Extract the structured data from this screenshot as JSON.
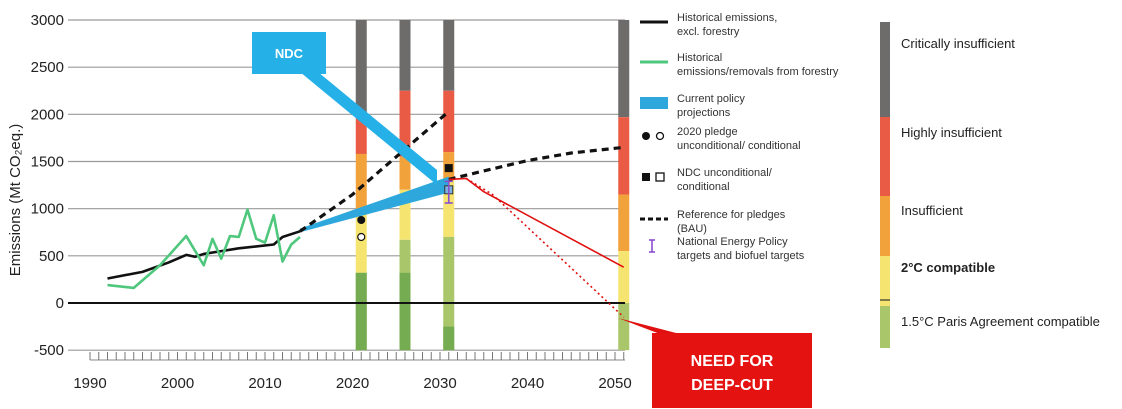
{
  "chart_data": {
    "type": "line",
    "ylabel": "Emissions (Mt CO₂eq.)",
    "xlim": [
      1990,
      2052
    ],
    "ylim": [
      -500,
      3000
    ],
    "x_ticks": [
      1990,
      2000,
      2010,
      2020,
      2030,
      2040,
      2050
    ],
    "y_ticks": [
      -500,
      0,
      500,
      1000,
      1500,
      2000,
      2500,
      3000
    ],
    "grid": true,
    "rating_bands": [
      {
        "name": "Critically insufficient",
        "color": "#6e6b6b"
      },
      {
        "name": "Highly insufficient",
        "color": "#ea5b45"
      },
      {
        "name": "Insufficient",
        "color": "#f2a23a"
      },
      {
        "name": "2°C compatible",
        "color": "#f6e470"
      },
      {
        "name": "1.5°C Paris Agreement compatible",
        "color": "#a9c76a"
      }
    ],
    "rating_columns": [
      {
        "x": 2021,
        "limits": [
          3000,
          2000,
          1580,
          950,
          320,
          -500
        ]
      },
      {
        "x": 2026,
        "limits": [
          3000,
          2250,
          1550,
          1200,
          670,
          -500
        ]
      },
      {
        "x": 2031,
        "limits": [
          3000,
          2250,
          1600,
          1300,
          700,
          -250,
          -500
        ]
      },
      {
        "x": 2051,
        "limits": [
          3000,
          1970,
          1150,
          550,
          0,
          -500
        ]
      }
    ],
    "series": [
      {
        "name": "Historical emissions, excl. forestry",
        "style": "solid",
        "color": "#111111",
        "points": [
          [
            1992,
            260
          ],
          [
            1996,
            330
          ],
          [
            1999,
            430
          ],
          [
            2001,
            510
          ],
          [
            2002,
            490
          ],
          [
            2003,
            520
          ],
          [
            2005,
            550
          ],
          [
            2007,
            580
          ],
          [
            2009,
            600
          ],
          [
            2011,
            620
          ],
          [
            2012,
            700
          ],
          [
            2014,
            760
          ]
        ]
      },
      {
        "name": "Historical emissions/removals from forestry",
        "style": "solid",
        "color": "#4fc77d",
        "points": [
          [
            1992,
            190
          ],
          [
            1995,
            160
          ],
          [
            1998,
            400
          ],
          [
            2001,
            710
          ],
          [
            2003,
            400
          ],
          [
            2004,
            680
          ],
          [
            2005,
            470
          ],
          [
            2006,
            710
          ],
          [
            2007,
            700
          ],
          [
            2008,
            990
          ],
          [
            2009,
            680
          ],
          [
            2010,
            640
          ],
          [
            2011,
            930
          ],
          [
            2012,
            440
          ],
          [
            2013,
            620
          ],
          [
            2014,
            700
          ]
        ]
      },
      {
        "name": "Reference for pledges (BAU)",
        "style": "dashed",
        "color": "#111111",
        "points": [
          [
            2014,
            760
          ],
          [
            2020,
            1150
          ],
          [
            2025,
            1550
          ],
          [
            2031,
            2030
          ]
        ]
      },
      {
        "name": "Reference for pledges (BAU)",
        "style": "dashed",
        "color": "#111111",
        "points": [
          [
            2031,
            1310
          ],
          [
            2035,
            1400
          ],
          [
            2040,
            1510
          ],
          [
            2045,
            1590
          ],
          [
            2051,
            1650
          ]
        ]
      },
      {
        "name": "",
        "style": "solid",
        "color": "#e01010",
        "points": [
          [
            2031,
            1310
          ],
          [
            2033,
            1320
          ],
          [
            2035,
            1180
          ],
          [
            2051,
            380
          ]
        ]
      },
      {
        "name": "",
        "style": "dotted",
        "color": "#e01010",
        "points": [
          [
            2033,
            1320
          ],
          [
            2036,
            1150
          ],
          [
            2051,
            -150
          ]
        ]
      }
    ],
    "current_policy_projection": {
      "x": [
        2014,
        2031
      ],
      "low": [
        750,
        1170
      ],
      "high": [
        790,
        1340
      ]
    },
    "pledge_2020": {
      "x": 2021,
      "unconditional": 880,
      "conditional": 700
    },
    "ndc": {
      "x": 2031,
      "unconditional": 1430,
      "conditional": 1200
    },
    "energy_policy_targets": {
      "x": 2031,
      "value": 1180,
      "low": 1060,
      "high": 1290
    },
    "legend": [
      {
        "label": "Historical emissions, excl. forestry",
        "symbol": "black-line"
      },
      {
        "label": "Historical emissions/removals from forestry",
        "symbol": "green-line"
      },
      {
        "label": "Current policy projections",
        "symbol": "blue-block"
      },
      {
        "label": "2020 pledge unconditional/ conditional",
        "symbol": "circles"
      },
      {
        "label": "NDC unconditional/ conditional",
        "symbol": "squares"
      },
      {
        "label": "Reference for pledges (BAU)",
        "symbol": "dashed-line"
      },
      {
        "label": "National Energy Policy targets and biofuel targets",
        "symbol": "purple-bar"
      }
    ],
    "callouts": {
      "ndc": "NDC",
      "deep_cut": [
        "NEED FOR",
        "DEEP-CUT"
      ]
    }
  }
}
